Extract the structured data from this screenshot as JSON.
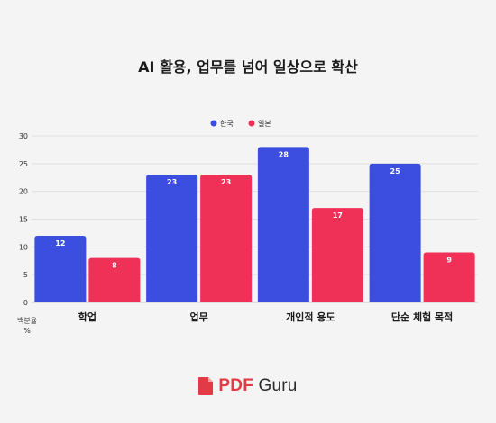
{
  "chart_data": {
    "type": "bar",
    "title": "AI 활용, 업무를 넘어 일상으로 확산",
    "categories": [
      "학업",
      "업무",
      "개인적 용도",
      "단순 체험 목적"
    ],
    "series": [
      {
        "name": "한국",
        "color": "#3c4ee0",
        "values": [
          12,
          23,
          28,
          25
        ]
      },
      {
        "name": "일본",
        "color": "#ef3158",
        "values": [
          8,
          23,
          17,
          9
        ]
      }
    ],
    "ylim": [
      0,
      30
    ],
    "yticks": [
      0,
      5,
      10,
      15,
      20,
      25,
      30
    ],
    "ylabel_lines": [
      "백분율",
      "%"
    ],
    "grid": true,
    "legend_position": "top-center"
  },
  "brand": {
    "accent": "PDF",
    "rest": " Guru"
  }
}
